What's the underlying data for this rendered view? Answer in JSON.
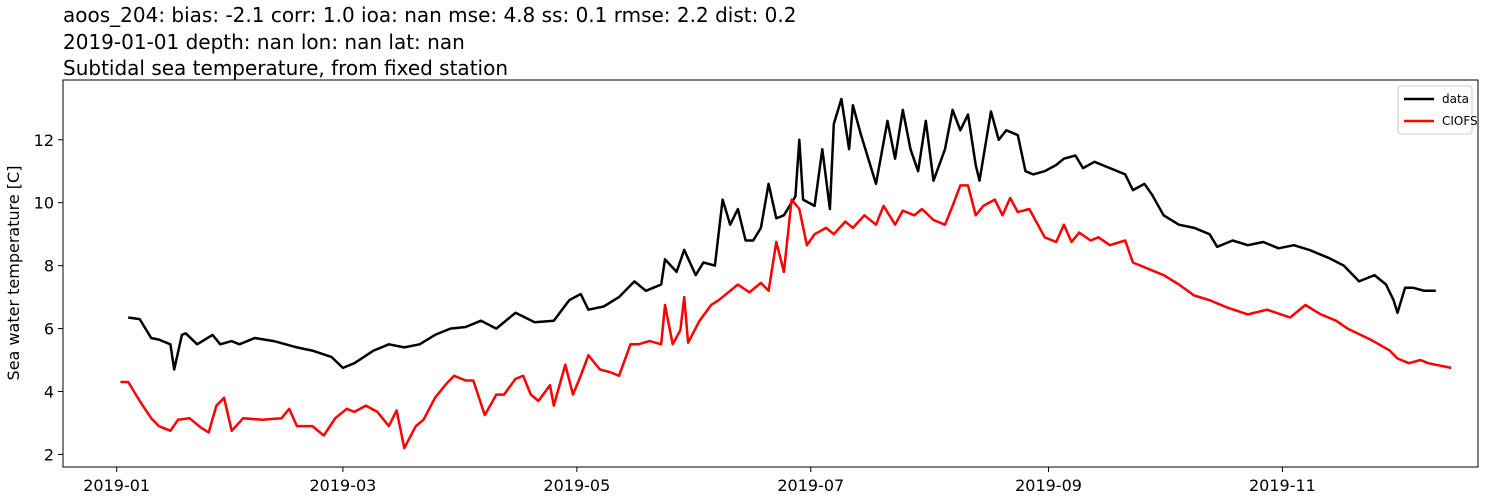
{
  "chart_data": {
    "type": "line",
    "title": [
      "aoos_204: bias: -2.1  corr: 1.0  ioa: nan  mse: 4.8  ss: 0.1  rmse: 2.2  dist: 0.2",
      "2019-01-01 depth: nan lon: nan lat: nan",
      "Subtidal sea temperature, from fixed station"
    ],
    "y_label": "Sea water temperature [C]",
    "xlim": [
      -14,
      355
    ],
    "ylim": [
      1.6,
      13.9
    ],
    "xticks": [
      {
        "value": 0,
        "label": "2019-01"
      },
      {
        "value": 59,
        "label": "2019-03"
      },
      {
        "value": 120,
        "label": "2019-05"
      },
      {
        "value": 181,
        "label": "2019-07"
      },
      {
        "value": 243,
        "label": "2019-09"
      },
      {
        "value": 304,
        "label": "2019-11"
      }
    ],
    "yticks": [
      2,
      4,
      6,
      8,
      10,
      12
    ],
    "legend": "upper right",
    "series": [
      {
        "name": "data",
        "color": "#000000",
        "x": [
          3,
          6,
          9,
          11,
          14,
          15,
          17,
          18,
          21,
          23,
          25,
          27,
          30,
          32,
          36,
          41,
          47,
          51,
          56,
          59,
          62,
          67,
          71,
          75,
          79,
          83,
          87,
          91,
          95,
          99,
          104,
          109,
          114,
          118,
          121,
          123,
          127,
          131,
          135,
          138,
          142,
          143,
          146,
          148,
          151,
          153,
          156,
          158,
          160,
          162,
          164,
          166,
          168,
          170,
          172,
          174,
          177,
          178,
          179,
          182,
          184,
          186,
          187,
          189,
          191,
          192,
          194,
          196,
          198,
          201,
          203,
          205,
          207,
          209,
          211,
          213,
          216,
          218,
          220,
          222,
          224,
          225,
          228,
          230,
          232,
          235,
          237,
          239,
          242,
          245,
          247,
          250,
          252,
          255,
          257,
          260,
          263,
          265,
          268,
          270,
          273,
          277,
          281,
          285,
          287,
          291,
          295,
          299,
          303,
          307,
          311,
          316,
          320,
          324,
          328,
          331,
          333,
          334,
          336,
          338,
          341,
          344
        ],
        "values": [
          6.35,
          6.3,
          5.7,
          5.65,
          5.5,
          4.7,
          5.8,
          5.85,
          5.5,
          5.65,
          5.8,
          5.5,
          5.6,
          5.5,
          5.7,
          5.6,
          5.4,
          5.3,
          5.1,
          4.75,
          4.9,
          5.3,
          5.5,
          5.4,
          5.5,
          5.8,
          6.0,
          6.05,
          6.25,
          6.0,
          6.5,
          6.2,
          6.25,
          6.9,
          7.1,
          6.6,
          6.7,
          7.0,
          7.5,
          7.2,
          7.4,
          8.2,
          7.8,
          8.5,
          7.7,
          8.1,
          8.0,
          10.1,
          9.3,
          9.8,
          8.8,
          8.8,
          9.2,
          10.6,
          9.5,
          9.6,
          10.2,
          12.0,
          10.1,
          9.9,
          11.7,
          9.8,
          12.5,
          13.3,
          11.7,
          13.1,
          12.2,
          11.4,
          10.6,
          12.6,
          11.4,
          12.95,
          11.7,
          11.0,
          12.6,
          10.7,
          11.7,
          12.95,
          12.3,
          12.8,
          11.2,
          10.7,
          12.9,
          12.0,
          12.3,
          12.15,
          11.0,
          10.9,
          11.0,
          11.2,
          11.4,
          11.5,
          11.1,
          11.3,
          11.2,
          11.05,
          10.9,
          10.4,
          10.6,
          10.25,
          9.6,
          9.3,
          9.2,
          9.0,
          8.6,
          8.8,
          8.65,
          8.75,
          8.55,
          8.65,
          8.5,
          8.25,
          8.0,
          7.5,
          7.7,
          7.4,
          6.9,
          6.5,
          7.3,
          7.3,
          7.2,
          7.2
        ]
      },
      {
        "name": "CIOFS",
        "color": "#ff0000",
        "x": [
          1,
          3,
          6,
          9,
          11,
          14,
          16,
          19,
          22,
          24,
          26,
          28,
          30,
          33,
          38,
          43,
          45,
          47,
          51,
          54,
          57,
          60,
          62,
          65,
          68,
          71,
          73,
          75,
          78,
          80,
          83,
          86,
          88,
          91,
          93,
          96,
          99,
          101,
          104,
          106,
          108,
          110,
          113,
          114,
          117,
          119,
          121,
          123,
          126,
          129,
          131,
          134,
          136,
          139,
          142,
          143,
          145,
          147,
          148,
          149,
          152,
          155,
          157,
          160,
          162,
          165,
          168,
          170,
          172,
          174,
          176,
          178,
          180,
          182,
          185,
          187,
          190,
          192,
          195,
          198,
          200,
          203,
          205,
          208,
          210,
          213,
          216,
          218,
          220,
          222,
          224,
          226,
          229,
          231,
          233,
          235,
          238,
          242,
          245,
          247,
          249,
          251,
          254,
          256,
          259,
          263,
          265,
          269,
          273,
          277,
          281,
          285,
          290,
          295,
          300,
          306,
          310,
          314,
          318,
          321,
          327,
          332,
          334,
          337,
          340,
          342,
          348
        ],
        "values": [
          4.3,
          4.3,
          3.7,
          3.15,
          2.9,
          2.75,
          3.1,
          3.15,
          2.85,
          2.7,
          3.55,
          3.8,
          2.75,
          3.15,
          3.1,
          3.15,
          3.45,
          2.9,
          2.9,
          2.6,
          3.15,
          3.45,
          3.35,
          3.55,
          3.35,
          2.9,
          3.4,
          2.2,
          2.9,
          3.1,
          3.8,
          4.25,
          4.5,
          4.35,
          4.35,
          3.25,
          3.9,
          3.9,
          4.4,
          4.5,
          3.9,
          3.7,
          4.2,
          3.55,
          4.85,
          3.9,
          4.5,
          5.15,
          4.7,
          4.6,
          4.5,
          5.5,
          5.5,
          5.6,
          5.5,
          6.75,
          5.5,
          5.95,
          7.0,
          5.55,
          6.25,
          6.75,
          6.9,
          7.2,
          7.4,
          7.15,
          7.45,
          7.2,
          8.75,
          7.8,
          10.1,
          9.8,
          8.65,
          9.0,
          9.2,
          9.0,
          9.4,
          9.2,
          9.6,
          9.3,
          9.9,
          9.3,
          9.75,
          9.6,
          9.8,
          9.45,
          9.3,
          9.9,
          10.55,
          10.55,
          9.6,
          9.9,
          10.1,
          9.6,
          10.15,
          9.7,
          9.8,
          8.9,
          8.75,
          9.3,
          8.75,
          9.05,
          8.8,
          8.9,
          8.65,
          8.8,
          8.1,
          7.9,
          7.7,
          7.4,
          7.05,
          6.9,
          6.65,
          6.45,
          6.6,
          6.35,
          6.75,
          6.45,
          6.25,
          6.0,
          5.65,
          5.3,
          5.05,
          4.9,
          5.0,
          4.9,
          4.75
        ]
      }
    ]
  }
}
